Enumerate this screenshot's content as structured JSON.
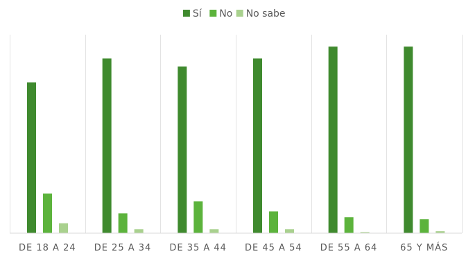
{
  "chart_data": {
    "type": "bar",
    "categories": [
      "DE 18 A 24",
      "DE 25 A 34",
      "DE 35 A 44",
      "DE 45 A 54",
      "DE 55 A 64",
      "65 Y MÁS"
    ],
    "series": [
      {
        "name": "Sí",
        "color": "#3f8a2e",
        "values": [
          76,
          88,
          84,
          88,
          94,
          94
        ]
      },
      {
        "name": "No",
        "color": "#5cb33c",
        "values": [
          20,
          10,
          16,
          11,
          8,
          7
        ]
      },
      {
        "name": "No sabe",
        "color": "#a9d18e",
        "values": [
          5,
          2,
          2,
          2,
          0,
          1
        ]
      }
    ],
    "ylim": [
      0,
      100
    ],
    "grid": false,
    "legend": "top-center"
  }
}
